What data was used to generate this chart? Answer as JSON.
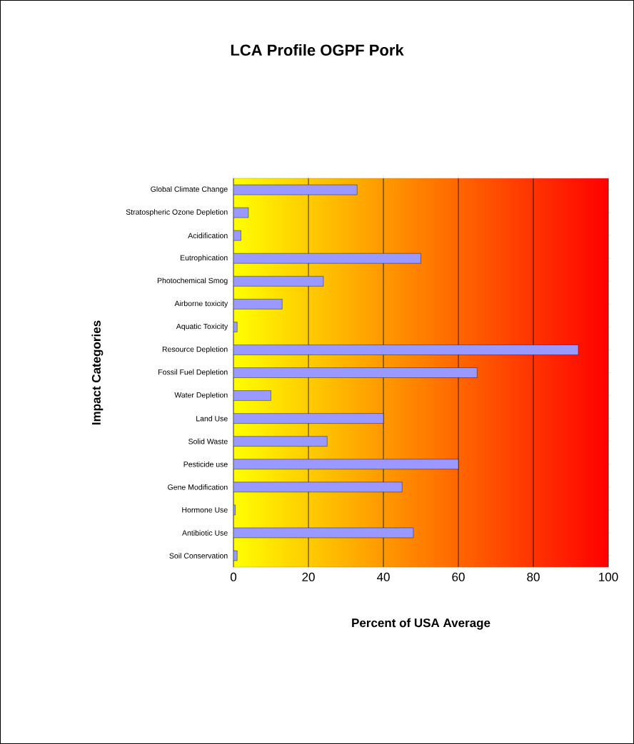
{
  "chart_data": {
    "type": "bar",
    "orientation": "horizontal",
    "title": "LCA Profile OGPF Pork",
    "xlabel": "Percent of USA Average",
    "ylabel": "Impact Categories",
    "categories": [
      "Global Climate Change",
      "Stratospheric Ozone Depletion",
      "Acidification",
      "Eutrophication",
      "Photochemical Smog",
      "Airborne toxicity",
      "Aquatic Toxicity",
      "Resource Depletion",
      "Fossil Fuel Depletion",
      "Water Depletion",
      "Land Use",
      "Solid Waste",
      "Pesticide use",
      "Gene Modification",
      "Hormone Use",
      "Antibiotic Use",
      "Soil Conservation"
    ],
    "values": [
      33,
      4,
      2,
      50,
      24,
      13,
      1,
      92,
      65,
      10,
      40,
      25,
      60,
      45,
      0.5,
      48,
      1
    ],
    "color": "#9999ff",
    "xlim": [
      0,
      100
    ],
    "xticks": [
      0,
      20,
      40,
      60,
      80,
      100
    ],
    "grid": "x"
  }
}
